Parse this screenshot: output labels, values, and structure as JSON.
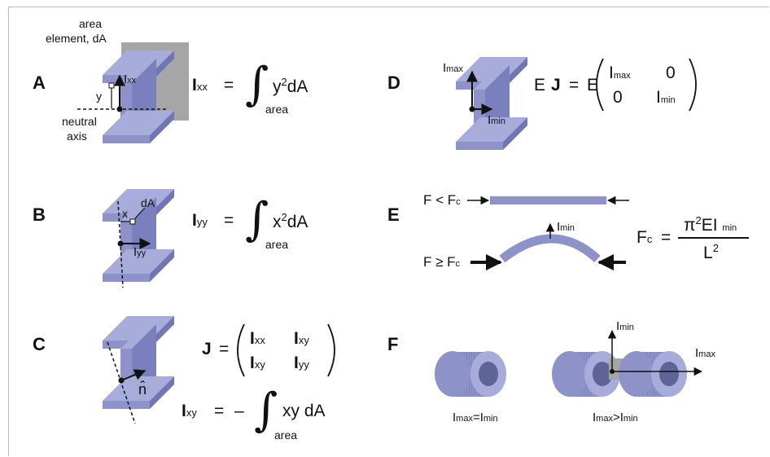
{
  "panels": {
    "a": {
      "letter": "A",
      "label_area_element_1": "area",
      "label_area_element_2": "element, dA",
      "label_neutral_1": "neutral",
      "label_neutral_2": "axis",
      "label_y": "y",
      "label_i": "I",
      "label_i_sub": "xx",
      "eq_i": "I",
      "eq_i_sub": "xx",
      "eq_equals": "=",
      "eq_integrand": "y",
      "eq_power": "2",
      "eq_da": "dA",
      "eq_area": "area"
    },
    "b": {
      "letter": "B",
      "label_da": "dA",
      "label_x": "x",
      "label_i": "I",
      "label_i_sub": "yy",
      "eq_i": "I",
      "eq_i_sub": "yy",
      "eq_equals": "=",
      "eq_integrand": "x",
      "eq_power": "2",
      "eq_da": "dA",
      "eq_area": "area"
    },
    "c": {
      "letter": "C",
      "label_n": "n̂",
      "matrix_j": "J",
      "matrix_equals": "=",
      "m11": "I",
      "m11_sub": "xx",
      "m12": "I",
      "m12_sub": "xy",
      "m21": "I",
      "m21_sub": "xy",
      "m22": "I",
      "m22_sub": "yy",
      "ixy_i": "I",
      "ixy_sub": "xy",
      "ixy_equals": "=",
      "ixy_minus": "–",
      "ixy_integrand": "xy dA",
      "ixy_area": "area"
    },
    "d": {
      "letter": "D",
      "label_imax": "I",
      "label_imax_sub": "max",
      "label_imin": "I",
      "label_imin_sub": "min",
      "eq_e1": "E",
      "eq_j": "J",
      "eq_equals": "=",
      "eq_e2": "E",
      "m11": "I",
      "m11_sub": "max",
      "m12": "0",
      "m21": "0",
      "m22": "I",
      "m22_sub": "min"
    },
    "e": {
      "letter": "E",
      "label_f_less": "F < F",
      "label_f_less_sub": "c",
      "label_f_geq": "F ≥ F",
      "label_f_geq_sub": "c",
      "label_imin": "I",
      "label_imin_sub": "min",
      "eq_fc": "F",
      "eq_fc_sub": "c",
      "eq_equals": "=",
      "eq_num": "π",
      "eq_num_pow": "2",
      "eq_num_rest": "EI",
      "eq_num_sub": "min",
      "eq_den": "L",
      "eq_den_pow": "2"
    },
    "f": {
      "letter": "F",
      "label_left": "I",
      "label_left_sub1": "max",
      "label_left_mid": "=I",
      "label_left_sub2": "min",
      "label_right": "I",
      "label_right_sub1": "max",
      "label_right_mid": ">I",
      "label_right_sub2": "min",
      "axis_imin": "I",
      "axis_imin_sub": "min",
      "axis_imax": "I",
      "axis_imax_sub": "max"
    }
  },
  "colors": {
    "beam_face": "#8d93c9",
    "beam_top": "#a7acdb",
    "beam_dark": "#7076b3",
    "gray_square": "#a6a6a6",
    "tube_inner": "#5e6497"
  }
}
